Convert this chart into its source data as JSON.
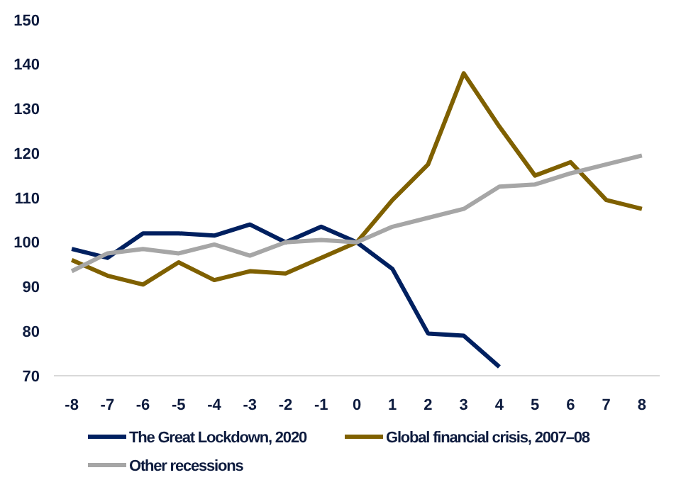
{
  "chart_data": {
    "type": "line",
    "x": [
      -8,
      -7,
      -6,
      -5,
      -4,
      -3,
      -2,
      -1,
      0,
      1,
      2,
      3,
      4,
      5,
      6,
      7,
      8
    ],
    "xlim": [
      -8.5,
      8.5
    ],
    "xticks": [
      -8,
      -7,
      -6,
      -5,
      -4,
      -3,
      -2,
      -1,
      0,
      1,
      2,
      3,
      4,
      5,
      6,
      7,
      8
    ],
    "ylim": [
      70,
      150
    ],
    "yticks": [
      70,
      80,
      90,
      100,
      110,
      120,
      130,
      140,
      150
    ],
    "grid": false,
    "legend": "bottom",
    "series": [
      {
        "name": "The Great Lockdown, 2020",
        "color": "#002060",
        "values": [
          98.5,
          96.5,
          102,
          102,
          101.5,
          104,
          100,
          103.5,
          100,
          94,
          79.5,
          79,
          72,
          null,
          null,
          null,
          null
        ]
      },
      {
        "name": "Global financial crisis, 2007–08",
        "color": "#7f6000",
        "values": [
          96,
          92.5,
          90.5,
          95.5,
          91.5,
          93.5,
          93,
          96.5,
          100,
          109.5,
          117.5,
          138,
          126,
          115,
          118,
          109.5,
          107.5
        ]
      },
      {
        "name": "Other recessions",
        "color": "#a6a6a6",
        "values": [
          93.5,
          97.5,
          98.5,
          97.5,
          99.5,
          97,
          100,
          100.5,
          100,
          103.5,
          105.5,
          107.5,
          112.5,
          113,
          115.5,
          117.5,
          119.5
        ]
      }
    ]
  }
}
